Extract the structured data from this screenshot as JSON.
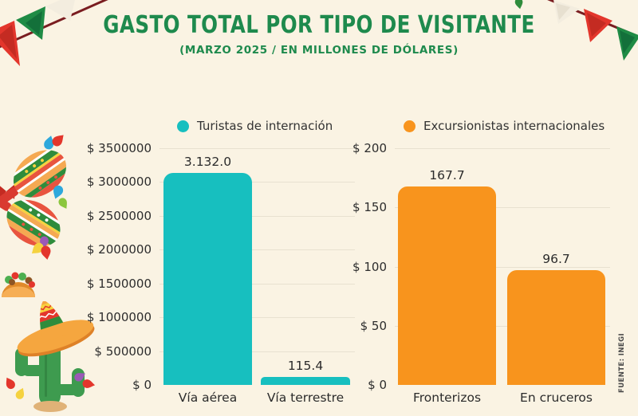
{
  "page": {
    "background": "#FAF3E3"
  },
  "header": {
    "title": "GASTO TOTAL POR TIPO DE VISITANTE",
    "subtitle": "(MARZO 2025 / EN MILLONES DE DÓLARES)"
  },
  "colors": {
    "title_green": "#1E8A4D",
    "teal": "#17BFBF",
    "orange": "#F8941D",
    "grid": "#E8E1D0",
    "text": "#2B2B2B",
    "background": "#FAF3E3"
  },
  "decorations": [
    "papel-picado-banner-left",
    "papel-picado-banner-right",
    "maracas",
    "taco",
    "sombrero-cactus",
    "confetti-drops"
  ],
  "chart_data": [
    {
      "type": "bar",
      "legend": "Turistas de internación",
      "color": "#17BFBF",
      "categories": [
        "Vía aérea",
        "Vía terrestre"
      ],
      "values": [
        3132000,
        115400
      ],
      "value_labels": [
        "3.132.0",
        "115.4"
      ],
      "xlabel": "",
      "ylabel": "",
      "ylim": [
        0,
        3500000
      ],
      "grid": true,
      "legend_position": "top",
      "yticks": [
        {
          "label": "$ 0",
          "value": 0
        },
        {
          "label": "$ 500000",
          "value": 500000
        },
        {
          "label": "$ 1000000",
          "value": 1000000
        },
        {
          "label": "$ 1500000",
          "value": 1500000
        },
        {
          "label": "$ 2000000",
          "value": 2000000
        },
        {
          "label": "$ 2500000",
          "value": 2500000
        },
        {
          "label": "$ 3000000",
          "value": 3000000
        },
        {
          "label": "$ 3500000",
          "value": 3500000
        }
      ]
    },
    {
      "type": "bar",
      "legend": "Excursionistas internacionales",
      "color": "#F8941D",
      "categories": [
        "Fronterizos",
        "En cruceros"
      ],
      "values": [
        167.7,
        96.7
      ],
      "value_labels": [
        "167.7",
        "96.7"
      ],
      "xlabel": "",
      "ylabel": "",
      "ylim": [
        0,
        200
      ],
      "grid": true,
      "legend_position": "top",
      "yticks": [
        {
          "label": "$ 0",
          "value": 0
        },
        {
          "label": "$ 50",
          "value": 50
        },
        {
          "label": "$ 100",
          "value": 100
        },
        {
          "label": "$ 150",
          "value": 150
        },
        {
          "label": "$ 200",
          "value": 200
        }
      ]
    }
  ],
  "source": {
    "label": "FUENTE: INEGI"
  }
}
